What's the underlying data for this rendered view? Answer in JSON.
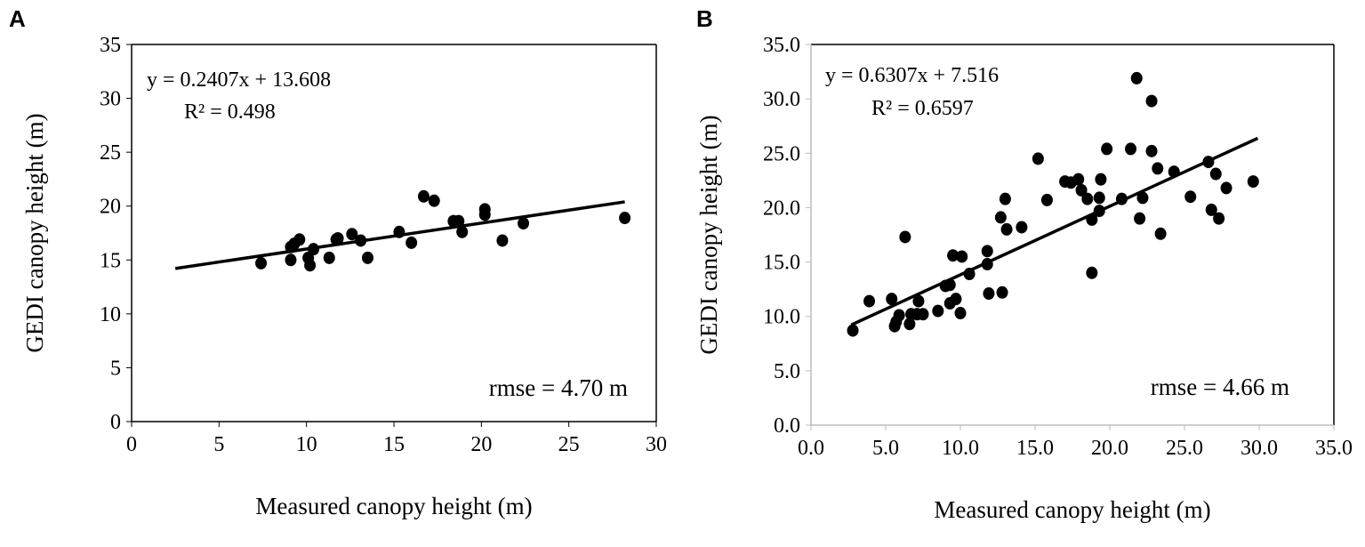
{
  "chart_data": [
    {
      "panel": "A",
      "type": "scatter",
      "xlabel": "Measured canopy height (m)",
      "ylabel": "GEDI canopy height (m)",
      "xlim": [
        0,
        30
      ],
      "ylim": [
        0,
        35
      ],
      "xticks": [
        "0",
        "5",
        "10",
        "15",
        "20",
        "25",
        "30"
      ],
      "yticks": [
        "0",
        "5",
        "10",
        "15",
        "20",
        "25",
        "30",
        "35"
      ],
      "equation": "y = 0.2407x + 13.608",
      "r2": "R² = 0.498",
      "rmse": "rmse = 4.70  m",
      "trendline": {
        "slope": 0.2407,
        "intercept": 13.608,
        "x_range": [
          2.5,
          28.2
        ]
      },
      "points": [
        [
          7.4,
          14.7
        ],
        [
          9.1,
          16.2
        ],
        [
          9.3,
          16.5
        ],
        [
          9.6,
          16.9
        ],
        [
          9.1,
          15.0
        ],
        [
          10.1,
          15.2
        ],
        [
          10.2,
          14.5
        ],
        [
          10.4,
          16.0
        ],
        [
          11.3,
          15.2
        ],
        [
          11.7,
          16.9
        ],
        [
          11.8,
          17.0
        ],
        [
          12.6,
          17.4
        ],
        [
          13.1,
          16.8
        ],
        [
          13.5,
          15.2
        ],
        [
          15.3,
          17.6
        ],
        [
          16.0,
          16.6
        ],
        [
          16.7,
          20.9
        ],
        [
          17.3,
          20.5
        ],
        [
          18.4,
          18.6
        ],
        [
          18.7,
          18.6
        ],
        [
          18.9,
          17.6
        ],
        [
          20.2,
          19.7
        ],
        [
          20.2,
          19.2
        ],
        [
          21.2,
          16.8
        ],
        [
          22.4,
          18.4
        ],
        [
          28.2,
          18.9
        ]
      ]
    },
    {
      "panel": "B",
      "type": "scatter",
      "xlabel": "Measured canopy height (m)",
      "ylabel": "GEDI canopy height (m)",
      "xlim": [
        0,
        35
      ],
      "ylim": [
        0,
        35
      ],
      "xticks": [
        "0.0",
        "5.0",
        "10.0",
        "15.0",
        "20.0",
        "25.0",
        "30.0",
        "35.0"
      ],
      "yticks": [
        "0.0",
        "5.0",
        "10.0",
        "15.0",
        "20.0",
        "25.0",
        "30.0",
        "35.0"
      ],
      "equation": "y = 0.6307x + 7.516",
      "r2": "R² = 0.6597",
      "rmse": "rmse = 4.66 m",
      "trendline": {
        "slope": 0.6307,
        "intercept": 7.516,
        "x_range": [
          2.7,
          29.9
        ]
      },
      "points": [
        [
          2.8,
          8.7
        ],
        [
          3.9,
          11.4
        ],
        [
          5.4,
          11.6
        ],
        [
          5.6,
          9.1
        ],
        [
          5.7,
          9.5
        ],
        [
          5.9,
          10.1
        ],
        [
          6.3,
          17.3
        ],
        [
          6.6,
          9.3
        ],
        [
          6.7,
          10.2
        ],
        [
          7.2,
          11.4
        ],
        [
          7.1,
          10.2
        ],
        [
          7.5,
          10.2
        ],
        [
          8.5,
          10.5
        ],
        [
          9.0,
          12.8
        ],
        [
          9.3,
          12.9
        ],
        [
          9.3,
          11.2
        ],
        [
          9.7,
          11.6
        ],
        [
          10.0,
          10.3
        ],
        [
          9.5,
          15.6
        ],
        [
          10.1,
          15.5
        ],
        [
          10.6,
          13.9
        ],
        [
          11.8,
          16.0
        ],
        [
          11.8,
          14.8
        ],
        [
          11.9,
          12.1
        ],
        [
          12.8,
          12.2
        ],
        [
          12.7,
          19.1
        ],
        [
          13.0,
          20.8
        ],
        [
          13.1,
          18.0
        ],
        [
          14.1,
          18.2
        ],
        [
          15.2,
          24.5
        ],
        [
          15.8,
          20.7
        ],
        [
          17.0,
          22.4
        ],
        [
          17.4,
          22.3
        ],
        [
          17.9,
          22.6
        ],
        [
          18.1,
          21.6
        ],
        [
          18.5,
          20.8
        ],
        [
          18.8,
          18.9
        ],
        [
          19.3,
          19.7
        ],
        [
          19.3,
          20.9
        ],
        [
          19.4,
          22.6
        ],
        [
          18.8,
          14.0
        ],
        [
          19.8,
          25.4
        ],
        [
          21.4,
          25.4
        ],
        [
          22.8,
          25.2
        ],
        [
          22.8,
          29.8
        ],
        [
          21.8,
          31.9
        ],
        [
          23.2,
          23.6
        ],
        [
          24.3,
          23.3
        ],
        [
          25.4,
          21.0
        ],
        [
          26.6,
          24.2
        ],
        [
          27.1,
          23.1
        ],
        [
          27.8,
          21.8
        ],
        [
          29.6,
          22.4
        ],
        [
          26.8,
          19.8
        ],
        [
          27.3,
          19.0
        ],
        [
          23.4,
          17.6
        ],
        [
          22.0,
          19.0
        ],
        [
          22.2,
          20.9
        ],
        [
          20.8,
          20.8
        ]
      ]
    }
  ]
}
